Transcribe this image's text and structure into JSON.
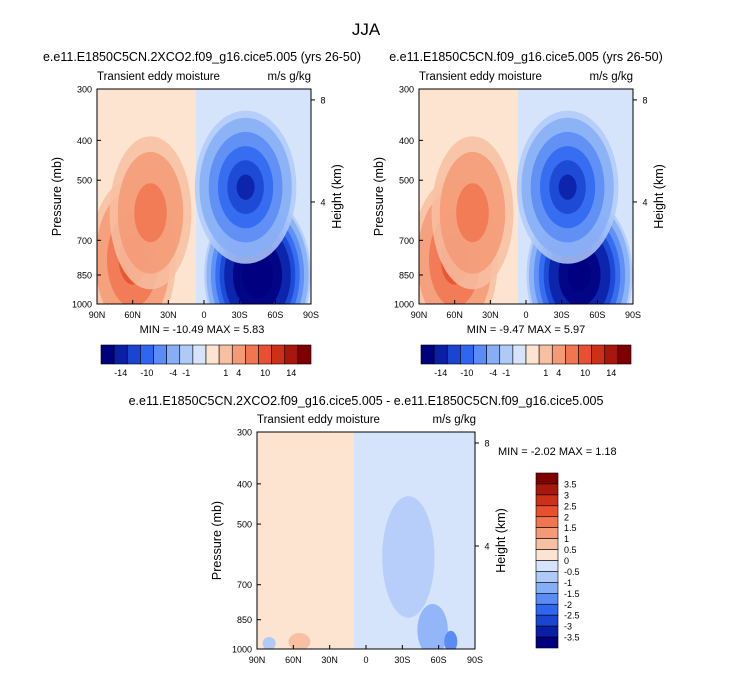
{
  "page_title": "JJA",
  "chart_data": [
    {
      "type": "heatmap",
      "title": "e.e11.E1850C5CN.2XCO2.f09_g16.cice5.005 (yrs 26-50)",
      "left_string": "Transient eddy moisture",
      "right_string": "m/s g/kg",
      "xlabel": "",
      "ylabel": "Pressure (mb)",
      "y2label": "Height (km)",
      "x_ticks": [
        "90N",
        "60N",
        "30N",
        "0",
        "30S",
        "60S",
        "90S"
      ],
      "y_ticks": [
        "300",
        "400",
        "500",
        "700",
        "850",
        "1000"
      ],
      "y2_ticks": [
        "8",
        "4"
      ],
      "min_max_text": "MIN = -10.49   MAX =   5.83",
      "min": -10.49,
      "max": 5.83,
      "fields": [
        {
          "sign": 1,
          "value": 3.5,
          "lat": 60,
          "p": 780
        },
        {
          "sign": 1,
          "value": 2.5,
          "lat": 45,
          "p": 600
        },
        {
          "sign": -1,
          "value": 10.49,
          "lat": -45,
          "p": 850
        },
        {
          "sign": -1,
          "value": 5,
          "lat": -35,
          "p": 520
        }
      ]
    },
    {
      "type": "heatmap",
      "title": "e.e11.E1850C5CN.f09_g16.cice5.005 (yrs 26-50)",
      "left_string": "Transient eddy moisture",
      "right_string": "m/s g/kg",
      "xlabel": "",
      "ylabel": "Pressure (mb)",
      "y2label": "Height (km)",
      "x_ticks": [
        "90N",
        "60N",
        "30N",
        "0",
        "30S",
        "60S",
        "90S"
      ],
      "y_ticks": [
        "300",
        "400",
        "500",
        "700",
        "850",
        "1000"
      ],
      "y2_ticks": [
        "8",
        "4"
      ],
      "min_max_text": "MIN = -9.47   MAX =   5.97",
      "min": -9.47,
      "max": 5.97,
      "fields": [
        {
          "sign": 1,
          "value": 3.5,
          "lat": 60,
          "p": 780
        },
        {
          "sign": 1,
          "value": 2.5,
          "lat": 45,
          "p": 600
        },
        {
          "sign": -1,
          "value": 9.47,
          "lat": -45,
          "p": 850
        },
        {
          "sign": -1,
          "value": 5,
          "lat": -35,
          "p": 520
        }
      ]
    },
    {
      "type": "heatmap",
      "title": "e.e11.E1850C5CN.2XCO2.f09_g16.cice5.005 - e.e11.E1850C5CN.f09_g16.cice5.005",
      "left_string": "Transient eddy moisture",
      "right_string": "m/s g/kg",
      "xlabel": "",
      "ylabel": "Pressure (mb)",
      "y2label": "Height (km)",
      "x_ticks": [
        "90N",
        "60N",
        "30N",
        "0",
        "30S",
        "60S",
        "90S"
      ],
      "y_ticks": [
        "300",
        "400",
        "500",
        "700",
        "850",
        "1000"
      ],
      "y2_ticks": [
        "8",
        "4"
      ],
      "min_max_text": "MIN = -2.02   MAX =   1.18",
      "min": -2.02,
      "max": 1.18
    }
  ],
  "colorbars": {
    "main": {
      "orientation": "horizontal",
      "labels": [
        "-14",
        "-10",
        "-4",
        "-1",
        "1",
        "4",
        "10",
        "14"
      ],
      "colors": [
        "#00007f",
        "#0b1fa6",
        "#1a45d1",
        "#2f66f0",
        "#5b8bf5",
        "#86aef7",
        "#b0caf8",
        "#d5e4fb",
        "#fde4d0",
        "#f8c0a2",
        "#f49a76",
        "#f07650",
        "#e8502f",
        "#cc3018",
        "#a8170b",
        "#7f0000"
      ]
    },
    "diff": {
      "orientation": "vertical",
      "labels": [
        "3.5",
        "3",
        "2.5",
        "2",
        "1.5",
        "1",
        "0.5",
        "0",
        "-0.5",
        "-1",
        "-1.5",
        "-2",
        "-2.5",
        "-3",
        "-3.5"
      ],
      "colors": [
        "#7f0000",
        "#a8170b",
        "#cc3018",
        "#e8502f",
        "#f07650",
        "#f49a76",
        "#f8c0a2",
        "#fde4d0",
        "#d5e4fb",
        "#b0caf8",
        "#86aef7",
        "#5b8bf5",
        "#2f66f0",
        "#1a45d1",
        "#0b1fa6",
        "#00007f"
      ]
    }
  }
}
